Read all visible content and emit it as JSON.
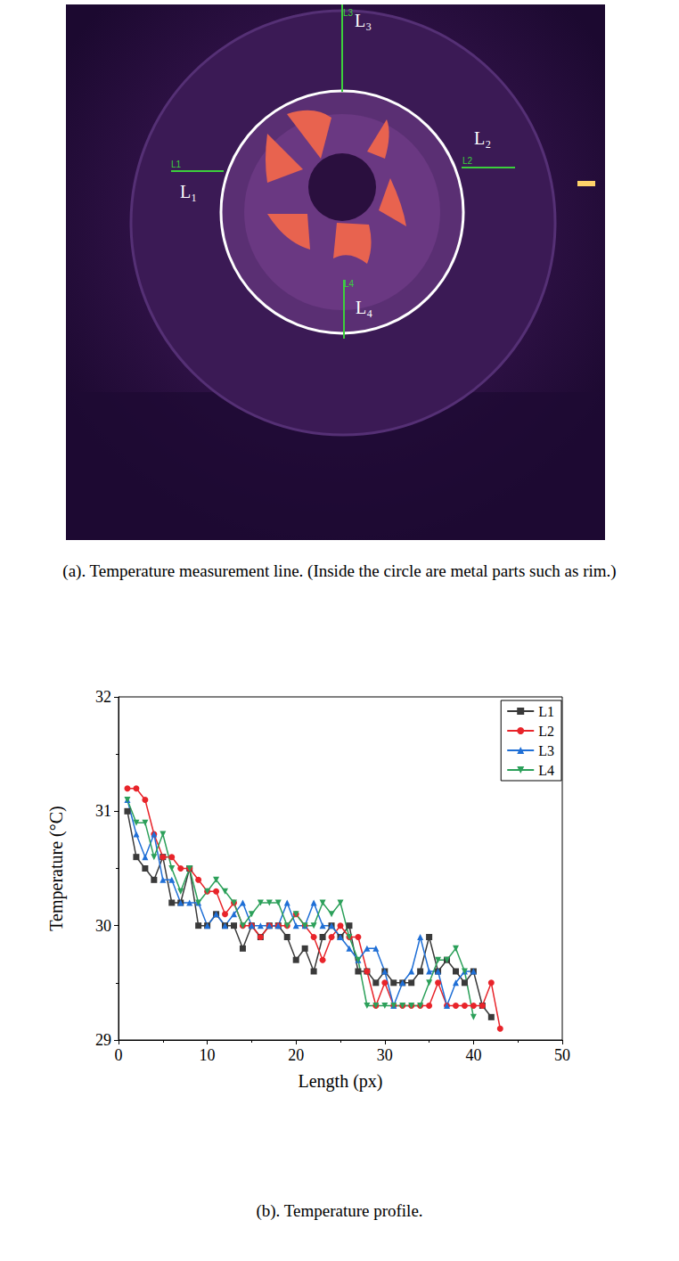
{
  "panel_a": {
    "caption": "(a). Temperature measurement line. (Inside the circle are metal parts such as rim.)",
    "line_tags": [
      "L1",
      "L2",
      "L3",
      "L4"
    ],
    "line_names": [
      "L₁",
      "L₂",
      "L₃",
      "L₄"
    ]
  },
  "panel_b": {
    "caption": "(b). Temperature profile."
  },
  "chart_data": {
    "type": "line",
    "x_label": "Length (px)",
    "y_label": "Temperature (°C)",
    "xlim": [
      0,
      50
    ],
    "xticks": [
      0,
      10,
      20,
      30,
      40,
      50
    ],
    "ylim": [
      29,
      32
    ],
    "yticks": [
      29,
      30,
      31,
      32
    ],
    "grid": false,
    "legend": "upper right",
    "series": [
      {
        "name": "L1",
        "color": "#3a3a3a",
        "marker": "square",
        "x": [
          1,
          2,
          3,
          4,
          5,
          6,
          7,
          8,
          9,
          10,
          11,
          12,
          13,
          14,
          15,
          16,
          17,
          18,
          19,
          20,
          21,
          22,
          23,
          24,
          25,
          26,
          27,
          28,
          29,
          30,
          31,
          32,
          33,
          34,
          35,
          36,
          37,
          38,
          39,
          40,
          41,
          42
        ],
        "values": [
          31.0,
          30.6,
          30.5,
          30.4,
          30.6,
          30.2,
          30.2,
          30.5,
          30.0,
          30.0,
          30.1,
          30.0,
          30.0,
          29.8,
          30.0,
          29.9,
          30.0,
          30.0,
          29.9,
          29.7,
          29.8,
          29.6,
          29.9,
          30.0,
          29.9,
          30.0,
          29.6,
          29.6,
          29.5,
          29.6,
          29.5,
          29.5,
          29.5,
          29.6,
          29.9,
          29.6,
          29.7,
          29.6,
          29.5,
          29.6,
          29.3,
          29.2
        ]
      },
      {
        "name": "L2",
        "color": "#e8242a",
        "marker": "circle",
        "x": [
          1,
          2,
          3,
          4,
          5,
          6,
          7,
          8,
          9,
          10,
          11,
          12,
          13,
          14,
          15,
          16,
          17,
          18,
          19,
          20,
          21,
          22,
          23,
          24,
          25,
          26,
          27,
          28,
          29,
          30,
          31,
          32,
          33,
          34,
          35,
          36,
          37,
          38,
          39,
          40,
          41,
          42,
          43
        ],
        "values": [
          31.2,
          31.2,
          31.1,
          30.8,
          30.6,
          30.6,
          30.5,
          30.5,
          30.4,
          30.3,
          30.3,
          30.1,
          30.2,
          30.0,
          30.0,
          29.9,
          30.0,
          30.0,
          30.0,
          30.1,
          30.0,
          29.9,
          29.7,
          29.9,
          30.0,
          29.9,
          29.9,
          29.6,
          29.3,
          29.5,
          29.3,
          29.3,
          29.3,
          29.3,
          29.3,
          29.5,
          29.3,
          29.3,
          29.3,
          29.3,
          29.3,
          29.5,
          29.1
        ]
      },
      {
        "name": "L3",
        "color": "#1f6fd6",
        "marker": "triangle",
        "x": [
          1,
          2,
          3,
          4,
          5,
          6,
          7,
          8,
          9,
          10,
          11,
          12,
          13,
          14,
          15,
          16,
          17,
          18,
          19,
          20,
          21,
          22,
          23,
          24,
          25,
          26,
          27,
          28,
          29,
          30,
          31,
          32,
          33,
          34,
          35,
          36,
          37,
          38,
          39,
          40
        ],
        "values": [
          31.1,
          30.8,
          30.6,
          30.8,
          30.4,
          30.4,
          30.2,
          30.2,
          30.2,
          30.0,
          30.1,
          30.0,
          30.1,
          30.2,
          30.0,
          30.0,
          30.0,
          30.0,
          30.2,
          30.0,
          30.0,
          30.2,
          30.0,
          30.0,
          29.9,
          29.8,
          29.7,
          29.8,
          29.8,
          29.6,
          29.3,
          29.5,
          29.6,
          29.9,
          29.6,
          29.6,
          29.3,
          29.5,
          29.6,
          29.6
        ]
      },
      {
        "name": "L4",
        "color": "#2ca05a",
        "marker": "triangle-down",
        "x": [
          1,
          2,
          3,
          4,
          5,
          6,
          7,
          8,
          9,
          10,
          11,
          12,
          13,
          14,
          15,
          16,
          17,
          18,
          19,
          20,
          21,
          22,
          23,
          24,
          25,
          26,
          27,
          28,
          29,
          30,
          31,
          32,
          33,
          34,
          35,
          36,
          37,
          38,
          39,
          40
        ],
        "values": [
          31.1,
          30.9,
          30.9,
          30.6,
          30.8,
          30.5,
          30.3,
          30.5,
          30.2,
          30.3,
          30.4,
          30.3,
          30.2,
          30.0,
          30.1,
          30.2,
          30.2,
          30.2,
          30.0,
          30.1,
          30.0,
          30.0,
          30.2,
          30.1,
          30.2,
          29.9,
          29.7,
          29.3,
          29.3,
          29.3,
          29.3,
          29.3,
          29.3,
          29.3,
          29.5,
          29.7,
          29.7,
          29.8,
          29.6,
          29.2
        ]
      }
    ]
  }
}
